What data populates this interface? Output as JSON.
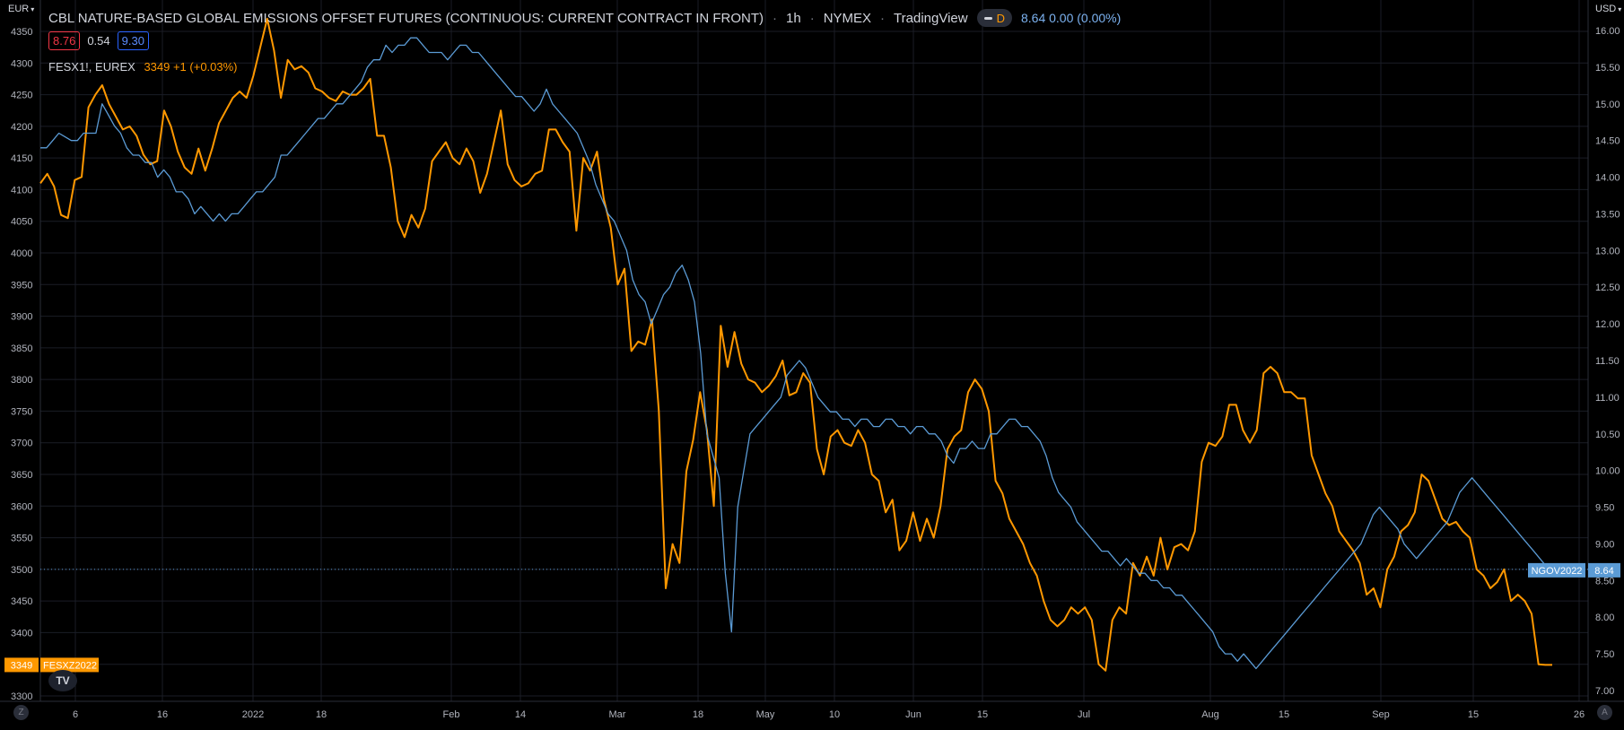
{
  "title": {
    "text": "CBL NATURE-BASED GLOBAL EMISSIONS OFFSET FUTURES (CONTINUOUS: CURRENT CONTRACT IN FRONT)",
    "interval": "1h",
    "exchange": "NYMEX",
    "source": "TradingView",
    "d_badge": "D",
    "price": "8.64",
    "change": "0.00 (0.00%)"
  },
  "ohlc": {
    "left": "8.76",
    "mid": "0.54",
    "right": "9.30"
  },
  "series2": {
    "symbol": "FESX1!, EUREX",
    "value": "3349 +1 (+0.03%)"
  },
  "currency_left": "EUR",
  "currency_right": "USD",
  "buttons": {
    "left_corner": "Z",
    "right_corner": "A"
  },
  "logo_text": "TV",
  "colors": {
    "orange": "#ff9800",
    "blue": "#5b9bd5",
    "grid": "#1e222d",
    "badge_blue": "#5b9bd5"
  },
  "chart_data": {
    "type": "line",
    "left_axis": {
      "unit": "EUR",
      "ticks": [
        3300,
        3350,
        3400,
        3450,
        3500,
        3550,
        3600,
        3650,
        3700,
        3750,
        3800,
        3850,
        3900,
        3950,
        4000,
        4050,
        4100,
        4150,
        4200,
        4250,
        4300,
        4350
      ]
    },
    "right_axis": {
      "unit": "USD",
      "ticks": [
        "7.00",
        "7.50",
        "8.00",
        "8.50",
        "9.00",
        "9.50",
        "10.00",
        "10.50",
        "11.00",
        "11.50",
        "12.00",
        "12.50",
        "13.00",
        "13.50",
        "14.00",
        "14.50",
        "15.00",
        "15.50",
        "16.00"
      ]
    },
    "x_ticks": [
      "6",
      "16",
      "2022",
      "18",
      "Feb",
      "14",
      "Mar",
      "18",
      "May",
      "10",
      "Jun",
      "15",
      "Jul",
      "Aug",
      "15",
      "Sep",
      "15",
      "26"
    ],
    "price_line_eur": 3500,
    "badges": {
      "left": {
        "value": "3349",
        "name": "FESXZ2022"
      },
      "right": {
        "name": "NGOV2022",
        "value": "8.64"
      }
    },
    "series": [
      {
        "name": "FESX1!, EUREX",
        "axis": "left",
        "color": "#ff9800",
        "values": [
          4110,
          4125,
          4105,
          4060,
          4055,
          4115,
          4120,
          4230,
          4250,
          4265,
          4235,
          4215,
          4195,
          4200,
          4185,
          4155,
          4140,
          4145,
          4225,
          4200,
          4160,
          4135,
          4125,
          4165,
          4130,
          4165,
          4205,
          4225,
          4245,
          4255,
          4245,
          4280,
          4325,
          4370,
          4320,
          4245,
          4305,
          4290,
          4295,
          4285,
          4260,
          4255,
          4245,
          4240,
          4255,
          4250,
          4250,
          4260,
          4275,
          4185,
          4185,
          4135,
          4050,
          4025,
          4060,
          4040,
          4070,
          4145,
          4160,
          4175,
          4150,
          4140,
          4165,
          4145,
          4095,
          4125,
          4175,
          4225,
          4140,
          4115,
          4105,
          4110,
          4125,
          4130,
          4195,
          4195,
          4175,
          4160,
          4035,
          4150,
          4130,
          4160,
          4085,
          4040,
          3950,
          3975,
          3845,
          3860,
          3855,
          3895,
          3750,
          3470,
          3540,
          3510,
          3655,
          3705,
          3780,
          3720,
          3600,
          3885,
          3820,
          3875,
          3825,
          3800,
          3795,
          3780,
          3790,
          3805,
          3830,
          3775,
          3780,
          3810,
          3795,
          3690,
          3650,
          3710,
          3720,
          3700,
          3695,
          3720,
          3700,
          3650,
          3640,
          3590,
          3610,
          3530,
          3545,
          3590,
          3545,
          3580,
          3550,
          3600,
          3690,
          3710,
          3720,
          3780,
          3800,
          3785,
          3750,
          3640,
          3620,
          3580,
          3560,
          3540,
          3510,
          3490,
          3450,
          3420,
          3410,
          3420,
          3440,
          3430,
          3440,
          3420,
          3350,
          3340,
          3420,
          3440,
          3430,
          3510,
          3490,
          3520,
          3490,
          3550,
          3500,
          3535,
          3540,
          3530,
          3560,
          3670,
          3700,
          3695,
          3710,
          3760,
          3760,
          3720,
          3700,
          3720,
          3810,
          3820,
          3810,
          3780,
          3780,
          3770,
          3770,
          3680,
          3650,
          3620,
          3600,
          3560,
          3545,
          3530,
          3510,
          3460,
          3470,
          3440,
          3500,
          3520,
          3560,
          3570,
          3590,
          3650,
          3640,
          3610,
          3580,
          3570,
          3575,
          3560,
          3550,
          3500,
          3490,
          3470,
          3480,
          3500,
          3450,
          3460,
          3450,
          3430,
          3350,
          3349,
          3349
        ]
      },
      {
        "name": "NGOV2022",
        "axis": "right",
        "color": "#5b9bd5",
        "values": [
          14.4,
          14.4,
          14.5,
          14.6,
          14.55,
          14.5,
          14.5,
          14.6,
          14.6,
          14.6,
          15.0,
          14.85,
          14.7,
          14.6,
          14.4,
          14.3,
          14.3,
          14.2,
          14.2,
          14.0,
          14.1,
          14.0,
          13.8,
          13.8,
          13.7,
          13.5,
          13.6,
          13.5,
          13.4,
          13.5,
          13.4,
          13.5,
          13.5,
          13.6,
          13.7,
          13.8,
          13.8,
          13.9,
          14.0,
          14.3,
          14.3,
          14.4,
          14.5,
          14.6,
          14.7,
          14.8,
          14.8,
          14.9,
          15.0,
          15.0,
          15.1,
          15.2,
          15.3,
          15.5,
          15.6,
          15.6,
          15.8,
          15.7,
          15.8,
          15.8,
          15.9,
          15.9,
          15.8,
          15.7,
          15.7,
          15.7,
          15.6,
          15.7,
          15.8,
          15.8,
          15.7,
          15.7,
          15.6,
          15.5,
          15.4,
          15.3,
          15.2,
          15.1,
          15.1,
          15.0,
          14.9,
          15.0,
          15.2,
          15.0,
          14.9,
          14.8,
          14.7,
          14.6,
          14.4,
          14.2,
          13.9,
          13.7,
          13.5,
          13.4,
          13.2,
          13.0,
          12.6,
          12.4,
          12.3,
          12.0,
          12.2,
          12.4,
          12.5,
          12.7,
          12.8,
          12.6,
          12.3,
          11.6,
          10.5,
          10.2,
          9.9,
          8.6,
          7.8,
          9.5,
          10.0,
          10.5,
          10.6,
          10.7,
          10.8,
          10.9,
          11.0,
          11.3,
          11.4,
          11.5,
          11.4,
          11.2,
          11.0,
          10.9,
          10.8,
          10.8,
          10.7,
          10.7,
          10.6,
          10.7,
          10.7,
          10.6,
          10.6,
          10.7,
          10.7,
          10.6,
          10.6,
          10.5,
          10.6,
          10.6,
          10.5,
          10.5,
          10.4,
          10.2,
          10.1,
          10.3,
          10.3,
          10.4,
          10.3,
          10.3,
          10.5,
          10.5,
          10.6,
          10.7,
          10.7,
          10.6,
          10.6,
          10.5,
          10.4,
          10.2,
          9.9,
          9.7,
          9.6,
          9.5,
          9.3,
          9.2,
          9.1,
          9.0,
          8.9,
          8.9,
          8.8,
          8.7,
          8.8,
          8.7,
          8.6,
          8.6,
          8.5,
          8.5,
          8.4,
          8.4,
          8.3,
          8.3,
          8.2,
          8.1,
          8.0,
          7.9,
          7.8,
          7.6,
          7.5,
          7.5,
          7.4,
          7.5,
          7.4,
          7.3,
          7.4,
          7.5,
          7.6,
          7.7,
          7.8,
          7.9,
          8.0,
          8.1,
          8.2,
          8.3,
          8.4,
          8.5,
          8.6,
          8.7,
          8.8,
          8.9,
          9.0,
          9.2,
          9.4,
          9.5,
          9.4,
          9.3,
          9.2,
          9.0,
          8.9,
          8.8,
          8.9,
          9.0,
          9.1,
          9.2,
          9.3,
          9.5,
          9.7,
          9.8,
          9.9,
          9.8,
          9.7,
          9.6,
          9.5,
          9.4,
          9.3,
          9.2,
          9.1,
          9.0,
          8.9,
          8.8,
          8.7,
          8.64
        ]
      }
    ]
  }
}
